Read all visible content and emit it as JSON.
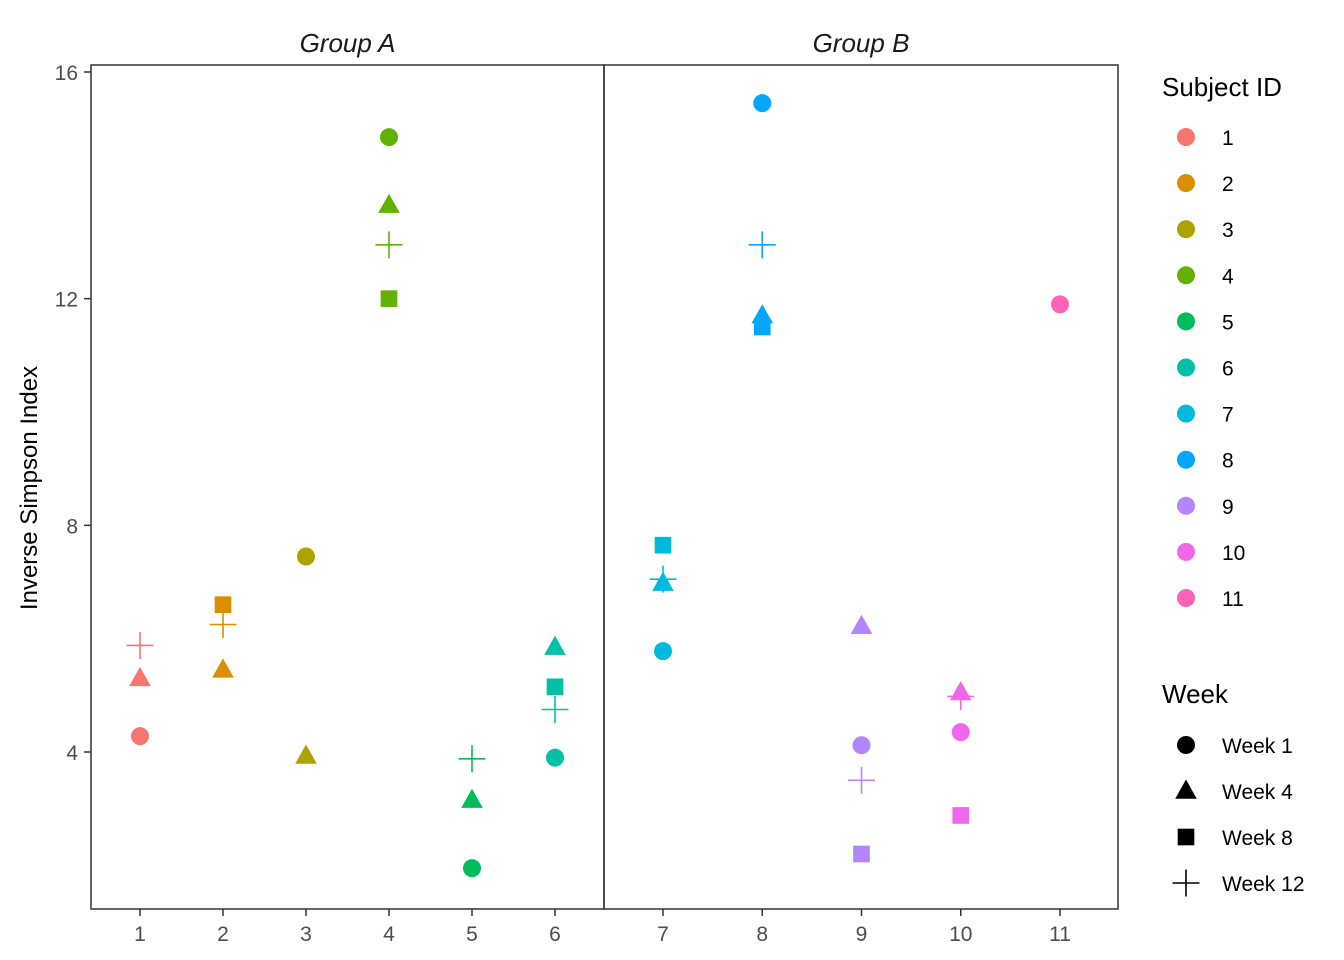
{
  "chart_data": {
    "type": "scatter",
    "ylabel": "Inverse Simpson Index",
    "xlabel": "",
    "ylim": [
      1.3,
      16.2
    ],
    "yticks": [
      4,
      8,
      12,
      16
    ],
    "grid": false,
    "legend_placement": "right",
    "facets": [
      {
        "title": "Group A",
        "subjects": [
          "1",
          "2",
          "3",
          "4",
          "5",
          "6"
        ]
      },
      {
        "title": "Group B",
        "subjects": [
          "7",
          "8",
          "9",
          "10",
          "11"
        ]
      }
    ],
    "subject_legend": {
      "title": "Subject ID",
      "entries": [
        {
          "label": "1",
          "color": "#F8766D"
        },
        {
          "label": "2",
          "color": "#DB8E00"
        },
        {
          "label": "3",
          "color": "#AEA200"
        },
        {
          "label": "4",
          "color": "#64B200"
        },
        {
          "label": "5",
          "color": "#00BD5C"
        },
        {
          "label": "6",
          "color": "#00C1A7"
        },
        {
          "label": "7",
          "color": "#00BADE"
        },
        {
          "label": "8",
          "color": "#00A6FF"
        },
        {
          "label": "9",
          "color": "#B385FF"
        },
        {
          "label": "10",
          "color": "#EF67EB"
        },
        {
          "label": "11",
          "color": "#FF63B6"
        }
      ]
    },
    "week_legend": {
      "title": "Week",
      "entries": [
        {
          "label": "Week 1",
          "shape": "circle"
        },
        {
          "label": "Week 4",
          "shape": "triangle"
        },
        {
          "label": "Week 8",
          "shape": "square"
        },
        {
          "label": "Week 12",
          "shape": "plus"
        }
      ]
    },
    "points": [
      {
        "subject": "1",
        "week": "Week 1",
        "y": 4.28
      },
      {
        "subject": "1",
        "week": "Week 4",
        "y": 5.3
      },
      {
        "subject": "1",
        "week": "Week 12",
        "y": 5.88
      },
      {
        "subject": "2",
        "week": "Week 4",
        "y": 5.45
      },
      {
        "subject": "2",
        "week": "Week 8",
        "y": 6.6
      },
      {
        "subject": "2",
        "week": "Week 12",
        "y": 6.25
      },
      {
        "subject": "3",
        "week": "Week 1",
        "y": 7.45
      },
      {
        "subject": "3",
        "week": "Week 4",
        "y": 3.93
      },
      {
        "subject": "4",
        "week": "Week 1",
        "y": 14.85
      },
      {
        "subject": "4",
        "week": "Week 4",
        "y": 13.65
      },
      {
        "subject": "4",
        "week": "Week 8",
        "y": 12.0
      },
      {
        "subject": "4",
        "week": "Week 12",
        "y": 12.95
      },
      {
        "subject": "5",
        "week": "Week 1",
        "y": 1.95
      },
      {
        "subject": "5",
        "week": "Week 4",
        "y": 3.15
      },
      {
        "subject": "5",
        "week": "Week 12",
        "y": 3.88
      },
      {
        "subject": "6",
        "week": "Week 1",
        "y": 3.9
      },
      {
        "subject": "6",
        "week": "Week 4",
        "y": 5.85
      },
      {
        "subject": "6",
        "week": "Week 8",
        "y": 5.15
      },
      {
        "subject": "6",
        "week": "Week 12",
        "y": 4.75
      },
      {
        "subject": "7",
        "week": "Week 1",
        "y": 5.78
      },
      {
        "subject": "7",
        "week": "Week 4",
        "y": 6.98
      },
      {
        "subject": "7",
        "week": "Week 8",
        "y": 7.65
      },
      {
        "subject": "7",
        "week": "Week 12",
        "y": 7.05
      },
      {
        "subject": "8",
        "week": "Week 1",
        "y": 15.45
      },
      {
        "subject": "8",
        "week": "Week 4",
        "y": 11.7
      },
      {
        "subject": "8",
        "week": "Week 8",
        "y": 11.5
      },
      {
        "subject": "8",
        "week": "Week 12",
        "y": 12.95
      },
      {
        "subject": "9",
        "week": "Week 1",
        "y": 4.12
      },
      {
        "subject": "9",
        "week": "Week 4",
        "y": 6.22
      },
      {
        "subject": "9",
        "week": "Week 8",
        "y": 2.2
      },
      {
        "subject": "9",
        "week": "Week 12",
        "y": 3.5
      },
      {
        "subject": "10",
        "week": "Week 1",
        "y": 4.35
      },
      {
        "subject": "10",
        "week": "Week 4",
        "y": 5.05
      },
      {
        "subject": "10",
        "week": "Week 8",
        "y": 2.88
      },
      {
        "subject": "10",
        "week": "Week 12",
        "y": 4.98
      },
      {
        "subject": "11",
        "week": "Week 1",
        "y": 11.9
      }
    ]
  }
}
